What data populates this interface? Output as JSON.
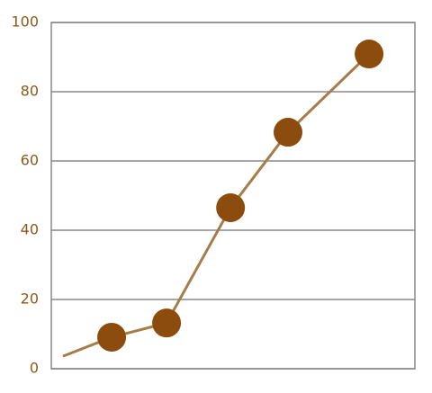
{
  "chart_data": {
    "type": "line",
    "x": [
      3.2,
      16.6,
      31.7,
      49.3,
      65.1,
      87.4
    ],
    "series": [
      {
        "color": "#a67c4a",
        "marker_color": "#8b4c0e",
        "values": [
          3.6,
          9.1,
          13.2,
          46.5,
          68.3,
          90.9
        ],
        "markers": [
          false,
          true,
          true,
          true,
          true,
          true
        ]
      }
    ],
    "xlim": [
      0,
      100
    ],
    "ylim": [
      0,
      100
    ],
    "yticks": [
      0,
      20,
      40,
      60,
      80,
      100
    ],
    "grid": true
  }
}
